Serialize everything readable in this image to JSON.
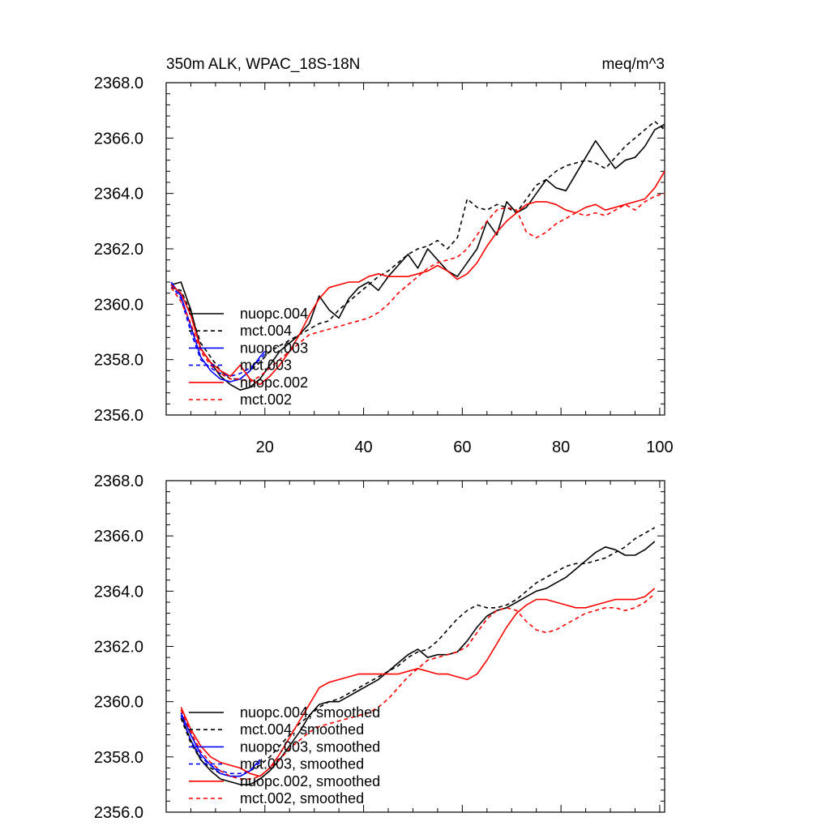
{
  "chart_data": [
    {
      "type": "line",
      "title": "350m ALK, WPAC_18S-18N",
      "units_label": "meq/m^3",
      "xlim": [
        0,
        101
      ],
      "ylim": [
        2356.0,
        2368.0
      ],
      "x_ticks": [
        20,
        40,
        60,
        80,
        100
      ],
      "x_tick_labels": [
        "20",
        "40",
        "60",
        "80",
        "100"
      ],
      "y_ticks": [
        2356.0,
        2358.0,
        2360.0,
        2362.0,
        2364.0,
        2366.0,
        2368.0
      ],
      "y_tick_labels": [
        "2356.0",
        "2358.0",
        "2360.0",
        "2362.0",
        "2364.0",
        "2366.0",
        "2368.0"
      ],
      "legend_position": "lower-left",
      "series": [
        {
          "name": "nuopc.004",
          "color": "#000000",
          "dashed": false,
          "x": [
            1,
            3,
            5,
            7,
            9,
            11,
            13,
            15,
            17,
            19,
            21,
            23,
            25,
            27,
            29,
            31,
            33,
            35,
            37,
            39,
            41,
            43,
            45,
            47,
            49,
            51,
            53,
            55,
            57,
            59,
            61,
            63,
            65,
            67,
            69,
            71,
            73,
            75,
            77,
            79,
            81,
            83,
            85,
            87,
            89,
            91,
            93,
            95,
            97,
            99,
            101
          ],
          "y": [
            2360.7,
            2360.8,
            2359.8,
            2358.4,
            2357.9,
            2357.4,
            2357.1,
            2356.9,
            2357.0,
            2357.3,
            2357.8,
            2358.3,
            2358.6,
            2358.9,
            2359.3,
            2360.3,
            2359.8,
            2359.5,
            2360.2,
            2360.6,
            2360.8,
            2360.5,
            2361.0,
            2361.4,
            2361.8,
            2361.3,
            2362.0,
            2361.6,
            2361.2,
            2361.0,
            2361.5,
            2362.0,
            2363.0,
            2362.5,
            2363.7,
            2363.3,
            2363.5,
            2364.0,
            2364.5,
            2364.2,
            2364.1,
            2364.7,
            2365.3,
            2365.9,
            2365.4,
            2364.9,
            2365.2,
            2365.3,
            2365.7,
            2366.3,
            2366.5
          ]
        },
        {
          "name": "mct.004",
          "color": "#000000",
          "dashed": true,
          "x": [
            1,
            3,
            5,
            7,
            9,
            11,
            13,
            15,
            17,
            19,
            21,
            23,
            25,
            27,
            29,
            31,
            33,
            35,
            37,
            39,
            41,
            43,
            45,
            47,
            49,
            51,
            53,
            55,
            57,
            59,
            61,
            63,
            65,
            67,
            69,
            71,
            73,
            75,
            77,
            79,
            81,
            83,
            85,
            87,
            89,
            91,
            93,
            95,
            97,
            99,
            101
          ],
          "y": [
            2360.6,
            2360.5,
            2359.7,
            2358.6,
            2358.1,
            2357.6,
            2357.3,
            2357.3,
            2357.6,
            2357.9,
            2358.3,
            2358.5,
            2358.7,
            2358.9,
            2359.1,
            2359.3,
            2359.4,
            2359.8,
            2360.1,
            2360.4,
            2360.7,
            2361.0,
            2361.2,
            2361.5,
            2361.8,
            2362.0,
            2362.1,
            2362.3,
            2362.0,
            2362.4,
            2363.8,
            2363.5,
            2363.4,
            2363.6,
            2363.5,
            2363.3,
            2363.8,
            2364.3,
            2364.5,
            2364.8,
            2365.0,
            2365.1,
            2365.2,
            2365.1,
            2364.9,
            2365.3,
            2365.7,
            2366.0,
            2366.3,
            2366.6,
            2366.3
          ]
        },
        {
          "name": "nuopc.003",
          "color": "#0000ff",
          "dashed": false,
          "x": [
            1,
            3,
            5,
            7,
            9,
            11,
            13,
            15,
            17,
            19,
            20
          ],
          "y": [
            2360.8,
            2360.3,
            2359.2,
            2358.1,
            2357.6,
            2357.3,
            2357.2,
            2357.3,
            2357.6,
            2358.1,
            2358.3
          ]
        },
        {
          "name": "mct.003",
          "color": "#0000ff",
          "dashed": true,
          "x": [
            1,
            3,
            5,
            7,
            9,
            11,
            13,
            15,
            17,
            19,
            20
          ],
          "y": [
            2360.7,
            2360.2,
            2359.0,
            2358.0,
            2357.7,
            2357.5,
            2357.4,
            2357.5,
            2357.7,
            2358.0,
            2358.2
          ]
        },
        {
          "name": "nuopc.002",
          "color": "#ff0000",
          "dashed": false,
          "x": [
            1,
            3,
            5,
            7,
            9,
            11,
            13,
            15,
            17,
            19,
            21,
            23,
            25,
            27,
            29,
            31,
            33,
            35,
            37,
            39,
            41,
            43,
            45,
            47,
            49,
            51,
            53,
            55,
            57,
            59,
            61,
            63,
            65,
            67,
            69,
            71,
            73,
            75,
            77,
            79,
            81,
            83,
            85,
            87,
            89,
            91,
            93,
            95,
            97,
            99,
            101
          ],
          "y": [
            2360.7,
            2360.4,
            2359.6,
            2358.4,
            2357.9,
            2357.6,
            2357.4,
            2357.8,
            2357.3,
            2357.1,
            2357.4,
            2357.8,
            2358.3,
            2358.9,
            2359.6,
            2360.2,
            2360.6,
            2360.7,
            2360.8,
            2360.8,
            2361.0,
            2361.1,
            2361.0,
            2361.0,
            2361.0,
            2361.1,
            2361.2,
            2361.4,
            2361.2,
            2360.9,
            2361.1,
            2361.5,
            2362.1,
            2362.6,
            2363.0,
            2363.3,
            2363.6,
            2363.7,
            2363.7,
            2363.6,
            2363.4,
            2363.3,
            2363.5,
            2363.6,
            2363.4,
            2363.5,
            2363.6,
            2363.7,
            2363.8,
            2364.2,
            2364.8
          ]
        },
        {
          "name": "mct.002",
          "color": "#ff0000",
          "dashed": true,
          "x": [
            1,
            3,
            5,
            7,
            9,
            11,
            13,
            15,
            17,
            19,
            21,
            23,
            25,
            27,
            29,
            31,
            33,
            35,
            37,
            39,
            41,
            43,
            45,
            47,
            49,
            51,
            53,
            55,
            57,
            59,
            61,
            63,
            65,
            67,
            69,
            71,
            73,
            75,
            77,
            79,
            81,
            83,
            85,
            87,
            89,
            91,
            93,
            95,
            97,
            99,
            101
          ],
          "y": [
            2360.6,
            2360.1,
            2359.3,
            2358.3,
            2357.8,
            2357.5,
            2357.3,
            2357.3,
            2357.2,
            2357.4,
            2357.7,
            2358.0,
            2358.3,
            2358.6,
            2358.9,
            2359.0,
            2359.1,
            2359.2,
            2359.3,
            2359.4,
            2359.5,
            2359.7,
            2360.0,
            2360.4,
            2360.7,
            2361.0,
            2361.3,
            2361.5,
            2361.6,
            2361.7,
            2362.0,
            2362.5,
            2363.0,
            2363.4,
            2363.5,
            2363.4,
            2362.6,
            2362.4,
            2362.6,
            2362.9,
            2363.1,
            2363.3,
            2363.2,
            2363.3,
            2363.2,
            2363.4,
            2363.6,
            2363.4,
            2363.7,
            2363.9,
            2364.0
          ]
        }
      ]
    },
    {
      "type": "line",
      "xlim": [
        0,
        101
      ],
      "ylim": [
        2356.0,
        2368.0
      ],
      "x_ticks": [
        20,
        40,
        60,
        80,
        100
      ],
      "y_ticks": [
        2356.0,
        2358.0,
        2360.0,
        2362.0,
        2364.0,
        2366.0,
        2368.0
      ],
      "y_tick_labels": [
        "2356.0",
        "2358.0",
        "2360.0",
        "2362.0",
        "2364.0",
        "2366.0",
        "2368.0"
      ],
      "legend_position": "lower-left",
      "series": [
        {
          "name": "nuopc.004, smoothed",
          "color": "#000000",
          "dashed": false,
          "x": [
            3,
            5,
            7,
            9,
            11,
            13,
            15,
            17,
            19,
            21,
            23,
            25,
            27,
            29,
            31,
            33,
            35,
            37,
            39,
            41,
            43,
            45,
            47,
            49,
            51,
            53,
            55,
            57,
            59,
            61,
            63,
            65,
            67,
            69,
            71,
            73,
            75,
            77,
            79,
            81,
            83,
            85,
            87,
            89,
            91,
            93,
            95,
            97,
            99
          ],
          "y": [
            2359.5,
            2358.6,
            2357.9,
            2357.5,
            2357.2,
            2357.1,
            2357.0,
            2357.0,
            2357.2,
            2357.5,
            2357.9,
            2358.4,
            2358.9,
            2359.5,
            2359.9,
            2360.0,
            2360.0,
            2360.2,
            2360.4,
            2360.6,
            2360.8,
            2361.1,
            2361.4,
            2361.7,
            2361.9,
            2361.6,
            2361.7,
            2361.7,
            2361.8,
            2362.2,
            2362.7,
            2363.1,
            2363.3,
            2363.4,
            2363.6,
            2363.8,
            2364.0,
            2364.1,
            2364.3,
            2364.5,
            2364.8,
            2365.1,
            2365.4,
            2365.6,
            2365.5,
            2365.3,
            2365.3,
            2365.5,
            2365.8
          ]
        },
        {
          "name": "mct.004, smoothed",
          "color": "#000000",
          "dashed": true,
          "x": [
            3,
            5,
            7,
            9,
            11,
            13,
            15,
            17,
            19,
            21,
            23,
            25,
            27,
            29,
            31,
            33,
            35,
            37,
            39,
            41,
            43,
            45,
            47,
            49,
            51,
            53,
            55,
            57,
            59,
            61,
            63,
            65,
            67,
            69,
            71,
            73,
            75,
            77,
            79,
            81,
            83,
            85,
            87,
            89,
            91,
            93,
            95,
            97,
            99
          ],
          "y": [
            2359.4,
            2358.5,
            2357.9,
            2357.6,
            2357.4,
            2357.3,
            2357.3,
            2357.5,
            2357.7,
            2358.0,
            2358.4,
            2358.8,
            2359.2,
            2359.5,
            2359.8,
            2360.0,
            2360.1,
            2360.3,
            2360.5,
            2360.7,
            2360.9,
            2361.1,
            2361.3,
            2361.6,
            2361.8,
            2361.9,
            2362.2,
            2362.6,
            2363.0,
            2363.3,
            2363.5,
            2363.4,
            2363.4,
            2363.5,
            2363.7,
            2364.0,
            2364.3,
            2364.5,
            2364.7,
            2364.9,
            2365.0,
            2365.0,
            2365.1,
            2365.2,
            2365.4,
            2365.6,
            2365.9,
            2366.1,
            2366.3
          ]
        },
        {
          "name": "nuopc.003, smoothed",
          "color": "#0000ff",
          "dashed": false,
          "x": [
            3,
            5,
            7,
            9,
            11,
            13,
            15,
            17,
            19
          ],
          "y": [
            2359.6,
            2358.8,
            2358.1,
            2357.7,
            2357.4,
            2357.3,
            2357.3,
            2357.5,
            2357.9
          ]
        },
        {
          "name": "mct.003, smoothed",
          "color": "#0000ff",
          "dashed": true,
          "x": [
            3,
            5,
            7,
            9,
            11,
            13,
            15,
            17,
            19
          ],
          "y": [
            2359.5,
            2358.6,
            2358.0,
            2357.7,
            2357.5,
            2357.4,
            2357.4,
            2357.5,
            2357.8
          ]
        },
        {
          "name": "nuopc.002, smoothed",
          "color": "#ff0000",
          "dashed": false,
          "x": [
            3,
            5,
            7,
            9,
            11,
            13,
            15,
            17,
            19,
            21,
            23,
            25,
            27,
            29,
            31,
            33,
            35,
            37,
            39,
            41,
            43,
            45,
            47,
            49,
            51,
            53,
            55,
            57,
            59,
            61,
            63,
            65,
            67,
            69,
            71,
            73,
            75,
            77,
            79,
            81,
            83,
            85,
            87,
            89,
            91,
            93,
            95,
            97,
            99
          ],
          "y": [
            2359.8,
            2359.0,
            2358.4,
            2358.0,
            2357.8,
            2357.7,
            2357.6,
            2357.4,
            2357.3,
            2357.6,
            2358.1,
            2358.7,
            2359.3,
            2359.9,
            2360.5,
            2360.7,
            2360.8,
            2360.9,
            2361.0,
            2361.0,
            2361.0,
            2361.0,
            2361.0,
            2361.1,
            2361.2,
            2361.1,
            2361.0,
            2361.0,
            2360.9,
            2360.8,
            2361.0,
            2361.5,
            2362.1,
            2362.7,
            2363.2,
            2363.5,
            2363.7,
            2363.7,
            2363.6,
            2363.5,
            2363.4,
            2363.4,
            2363.5,
            2363.6,
            2363.7,
            2363.7,
            2363.7,
            2363.8,
            2364.1
          ]
        },
        {
          "name": "mct.002, smoothed",
          "color": "#ff0000",
          "dashed": true,
          "x": [
            3,
            5,
            7,
            9,
            11,
            13,
            15,
            17,
            19,
            21,
            23,
            25,
            27,
            29,
            31,
            33,
            35,
            37,
            39,
            41,
            43,
            45,
            47,
            49,
            51,
            53,
            55,
            57,
            59,
            61,
            63,
            65,
            67,
            69,
            71,
            73,
            75,
            77,
            79,
            81,
            83,
            85,
            87,
            89,
            91,
            93,
            95,
            97,
            99
          ],
          "y": [
            2359.7,
            2358.9,
            2358.2,
            2357.8,
            2357.5,
            2357.3,
            2357.2,
            2357.2,
            2357.3,
            2357.6,
            2357.9,
            2358.3,
            2358.6,
            2358.9,
            2359.1,
            2359.2,
            2359.3,
            2359.4,
            2359.5,
            2359.6,
            2359.8,
            2360.1,
            2360.5,
            2360.9,
            2361.2,
            2361.5,
            2361.6,
            2361.7,
            2361.8,
            2362.0,
            2362.5,
            2363.0,
            2363.3,
            2363.4,
            2363.3,
            2362.9,
            2362.6,
            2362.5,
            2362.6,
            2362.8,
            2363.0,
            2363.2,
            2363.3,
            2363.4,
            2363.4,
            2363.3,
            2363.4,
            2363.6,
            2363.9
          ]
        }
      ]
    }
  ]
}
